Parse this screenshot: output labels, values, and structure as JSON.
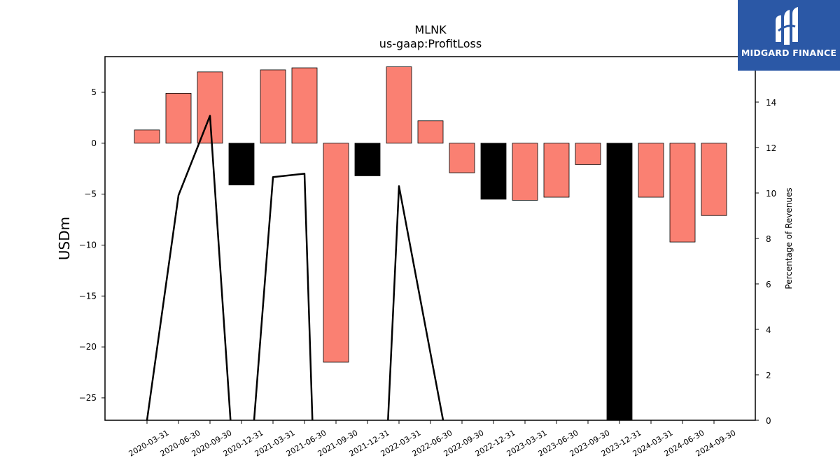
{
  "chart_data": {
    "type": "bar",
    "title": "MLNK",
    "subtitle": "us-gaap:ProfitLoss",
    "ylabel": "USDm",
    "y2label": "Percentage of Revenues",
    "categories": [
      "2020-03-31",
      "2020-06-30",
      "2020-09-30",
      "2020-12-31",
      "2021-03-31",
      "2021-06-30",
      "2021-09-30",
      "2021-12-31",
      "2022-03-31",
      "2022-06-30",
      "2022-09-30",
      "2022-12-31",
      "2023-03-31",
      "2023-06-30",
      "2023-09-30",
      "2023-12-31",
      "2024-03-31",
      "2024-06-30",
      "2024-09-30"
    ],
    "values": [
      1.3,
      4.9,
      7.0,
      -4.1,
      7.2,
      7.4,
      -21.5,
      -3.2,
      7.5,
      2.2,
      -2.9,
      -5.5,
      -5.6,
      -5.3,
      -2.1,
      -27.2,
      -5.3,
      -9.7,
      -7.1
    ],
    "bar_colors": [
      "#fa8072",
      "#fa8072",
      "#fa8072",
      "#000000",
      "#fa8072",
      "#fa8072",
      "#fa8072",
      "#000000",
      "#fa8072",
      "#fa8072",
      "#fa8072",
      "#000000",
      "#fa8072",
      "#fa8072",
      "#fa8072",
      "#000000",
      "#fa8072",
      "#fa8072",
      "#fa8072"
    ],
    "ylim": [
      -27.2,
      8.5
    ],
    "yticks": [
      5,
      0,
      -5,
      -10,
      -15,
      -20,
      -25
    ],
    "ytick_labels": [
      "5",
      "0",
      "−5",
      "−10",
      "−15",
      "−20",
      "−25"
    ],
    "y2lim": [
      0,
      16
    ],
    "y2ticks": [
      0,
      2,
      4,
      6,
      8,
      10,
      12,
      14
    ],
    "line_series": {
      "segments": [
        [
          [
            0,
            0
          ],
          [
            1,
            9.9
          ],
          [
            2,
            13.4
          ],
          [
            2.65,
            0
          ]
        ],
        [
          [
            3.4,
            0
          ],
          [
            4,
            10.7
          ],
          [
            5,
            10.85
          ],
          [
            5.25,
            0
          ]
        ],
        [
          [
            7.65,
            0
          ],
          [
            8,
            10.3
          ],
          [
            9.4,
            0
          ]
        ]
      ],
      "color": "#000000"
    },
    "grid": false
  },
  "logo": {
    "text": "MIDGARD FINANCE",
    "bg_color": "#2b58a6"
  }
}
